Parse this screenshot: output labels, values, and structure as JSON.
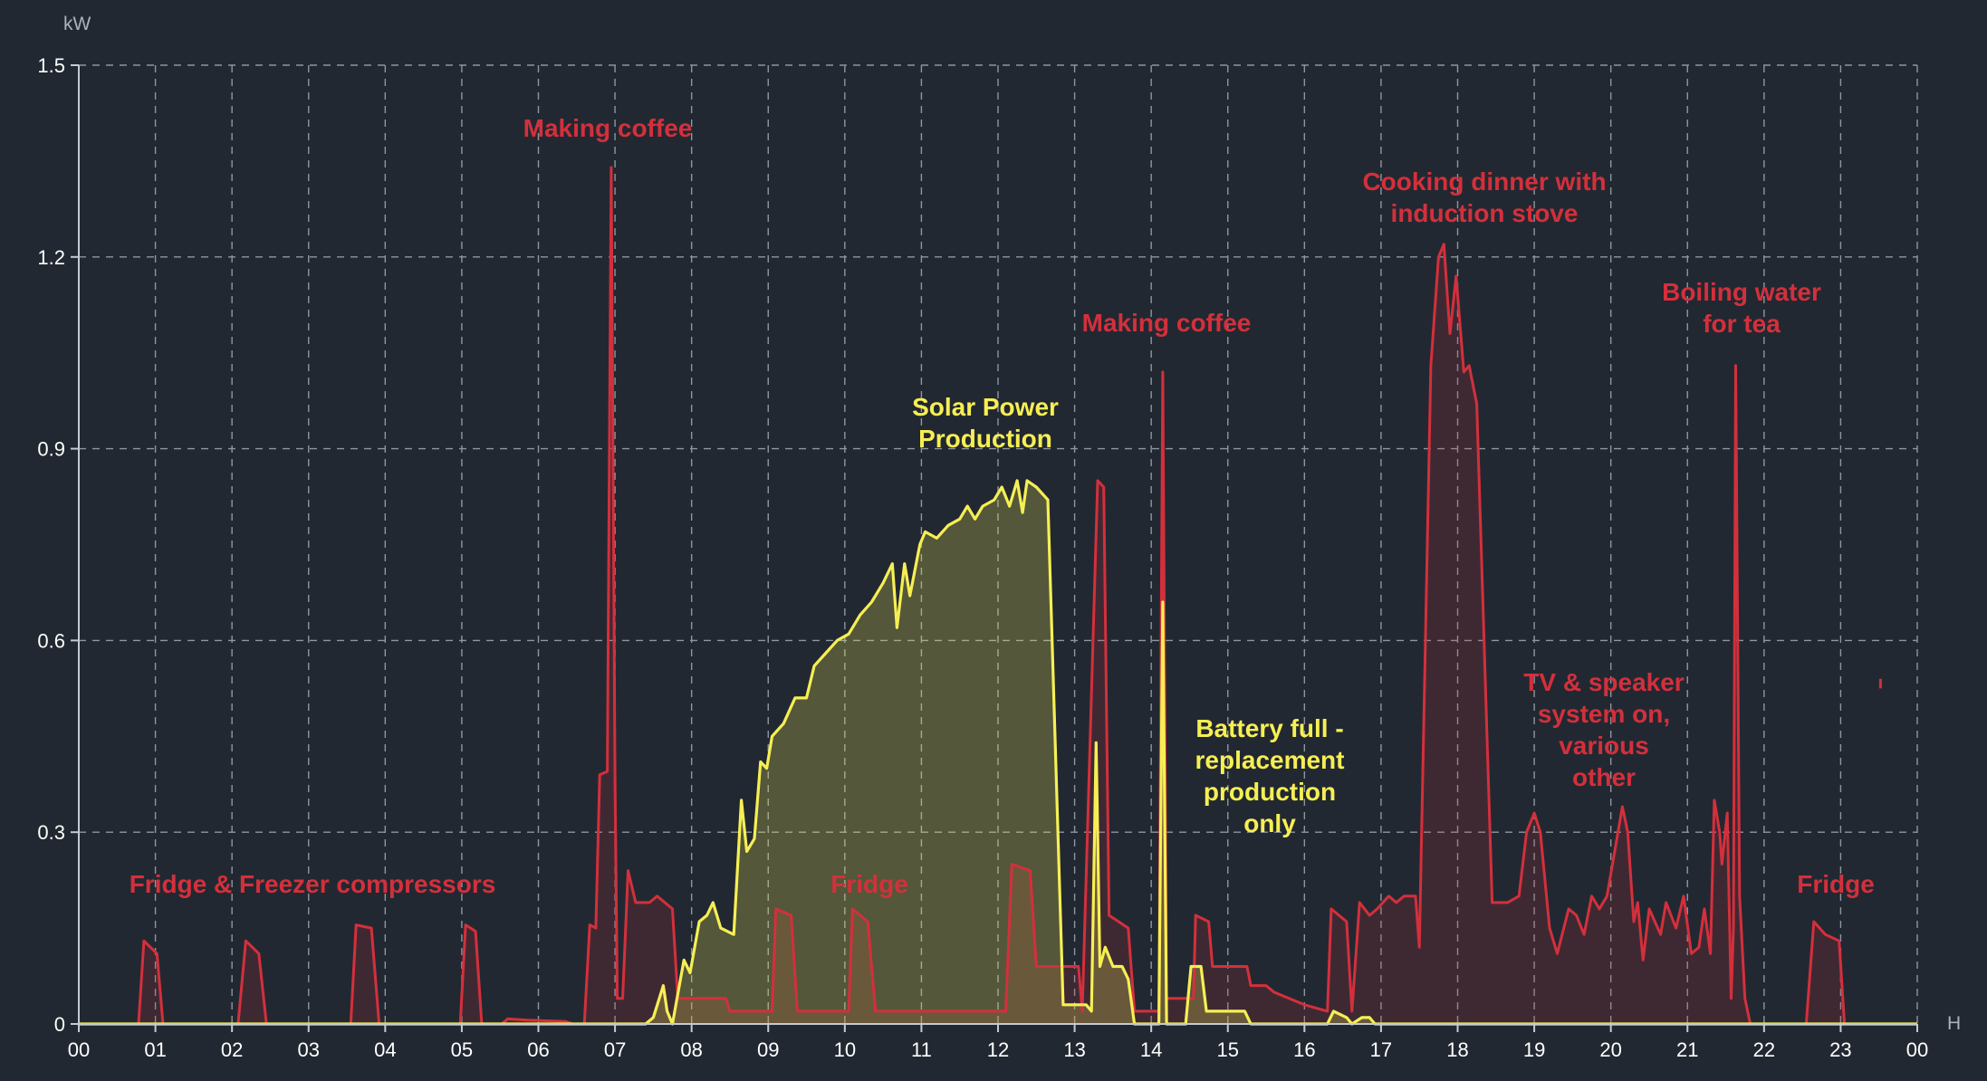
{
  "chart_data": {
    "type": "area",
    "xlabel": "H",
    "ylabel": "kW",
    "xlim": [
      0,
      24
    ],
    "ylim": [
      0,
      1.5
    ],
    "grid": true,
    "x_tick_labels": [
      "00",
      "01",
      "02",
      "03",
      "04",
      "05",
      "06",
      "07",
      "08",
      "09",
      "10",
      "11",
      "12",
      "13",
      "14",
      "15",
      "16",
      "17",
      "18",
      "19",
      "20",
      "21",
      "22",
      "23",
      "00"
    ],
    "y_ticks": [
      0,
      0.3,
      0.6,
      0.9,
      1.2,
      1.5
    ],
    "y_tick_labels": [
      "0",
      "0.3",
      "0.6",
      "0.9",
      "1.2",
      "1.5"
    ],
    "colors": {
      "consumption": "#d3303c",
      "solar": "#f6ef54"
    },
    "series": [
      {
        "key": "consumption",
        "points": [
          [
            0,
            0
          ],
          [
            0.78,
            0
          ],
          [
            0.85,
            0.13
          ],
          [
            1.02,
            0.11
          ],
          [
            1.1,
            0
          ],
          [
            2.08,
            0
          ],
          [
            2.18,
            0.13
          ],
          [
            2.35,
            0.11
          ],
          [
            2.45,
            0
          ],
          [
            3.55,
            0
          ],
          [
            3.62,
            0.155
          ],
          [
            3.82,
            0.15
          ],
          [
            3.92,
            0
          ],
          [
            4.98,
            0
          ],
          [
            5.05,
            0.155
          ],
          [
            5.18,
            0.145
          ],
          [
            5.26,
            0
          ],
          [
            5.52,
            0
          ],
          [
            5.6,
            0.008
          ],
          [
            5.85,
            0.006
          ],
          [
            6.35,
            0.004
          ],
          [
            6.45,
            0
          ],
          [
            6.6,
            0
          ],
          [
            6.67,
            0.155
          ],
          [
            6.75,
            0.15
          ],
          [
            6.8,
            0.39
          ],
          [
            6.9,
            0.395
          ],
          [
            6.95,
            1.34
          ],
          [
            7.0,
            0.38
          ],
          [
            7.03,
            0.04
          ],
          [
            7.1,
            0.04
          ],
          [
            7.17,
            0.24
          ],
          [
            7.27,
            0.19
          ],
          [
            7.45,
            0.19
          ],
          [
            7.55,
            0.2
          ],
          [
            7.75,
            0.18
          ],
          [
            7.82,
            0.04
          ],
          [
            8.1,
            0.04
          ],
          [
            8.45,
            0.04
          ],
          [
            8.5,
            0.02
          ],
          [
            9.05,
            0.02
          ],
          [
            9.1,
            0.18
          ],
          [
            9.3,
            0.17
          ],
          [
            9.38,
            0.02
          ],
          [
            9.9,
            0.02
          ],
          [
            10.05,
            0.02
          ],
          [
            10.1,
            0.18
          ],
          [
            10.3,
            0.16
          ],
          [
            10.4,
            0.02
          ],
          [
            11.35,
            0.02
          ],
          [
            11.8,
            0.02
          ],
          [
            12.1,
            0.02
          ],
          [
            12.18,
            0.25
          ],
          [
            12.42,
            0.24
          ],
          [
            12.5,
            0.09
          ],
          [
            12.6,
            0.09
          ],
          [
            13.05,
            0.09
          ],
          [
            13.1,
            0.02
          ],
          [
            13.3,
            0.85
          ],
          [
            13.38,
            0.84
          ],
          [
            13.45,
            0.17
          ],
          [
            13.7,
            0.15
          ],
          [
            13.78,
            0.02
          ],
          [
            14.1,
            0.02
          ],
          [
            14.15,
            1.02
          ],
          [
            14.2,
            0.04
          ],
          [
            14.55,
            0.04
          ],
          [
            14.58,
            0.17
          ],
          [
            14.75,
            0.16
          ],
          [
            14.8,
            0.09
          ],
          [
            15.25,
            0.09
          ],
          [
            15.3,
            0.06
          ],
          [
            15.5,
            0.06
          ],
          [
            15.6,
            0.05
          ],
          [
            15.8,
            0.04
          ],
          [
            16.0,
            0.03
          ],
          [
            16.3,
            0.02
          ],
          [
            16.35,
            0.18
          ],
          [
            16.55,
            0.16
          ],
          [
            16.62,
            0.02
          ],
          [
            16.72,
            0.19
          ],
          [
            16.85,
            0.17
          ],
          [
            16.95,
            0.18
          ],
          [
            17.1,
            0.2
          ],
          [
            17.2,
            0.19
          ],
          [
            17.3,
            0.2
          ],
          [
            17.45,
            0.2
          ],
          [
            17.5,
            0.12
          ],
          [
            17.65,
            1.03
          ],
          [
            17.75,
            1.2
          ],
          [
            17.82,
            1.22
          ],
          [
            17.9,
            1.08
          ],
          [
            17.98,
            1.17
          ],
          [
            18.08,
            1.02
          ],
          [
            18.15,
            1.03
          ],
          [
            18.25,
            0.97
          ],
          [
            18.45,
            0.19
          ],
          [
            18.65,
            0.19
          ],
          [
            18.8,
            0.2
          ],
          [
            18.9,
            0.3
          ],
          [
            19.0,
            0.33
          ],
          [
            19.08,
            0.3
          ],
          [
            19.2,
            0.15
          ],
          [
            19.3,
            0.11
          ],
          [
            19.45,
            0.18
          ],
          [
            19.55,
            0.17
          ],
          [
            19.65,
            0.14
          ],
          [
            19.75,
            0.2
          ],
          [
            19.85,
            0.18
          ],
          [
            19.95,
            0.2
          ],
          [
            20.05,
            0.27
          ],
          [
            20.15,
            0.34
          ],
          [
            20.22,
            0.3
          ],
          [
            20.3,
            0.16
          ],
          [
            20.35,
            0.19
          ],
          [
            20.42,
            0.1
          ],
          [
            20.5,
            0.18
          ],
          [
            20.65,
            0.14
          ],
          [
            20.72,
            0.19
          ],
          [
            20.85,
            0.15
          ],
          [
            20.95,
            0.2
          ],
          [
            21.05,
            0.11
          ],
          [
            21.15,
            0.12
          ],
          [
            21.22,
            0.18
          ],
          [
            21.3,
            0.11
          ],
          [
            21.35,
            0.35
          ],
          [
            21.42,
            0.3
          ],
          [
            21.45,
            0.25
          ],
          [
            21.52,
            0.33
          ],
          [
            21.57,
            0.04
          ],
          [
            21.6,
            0.15
          ],
          [
            21.63,
            1.03
          ],
          [
            21.68,
            0.2
          ],
          [
            21.75,
            0.04
          ],
          [
            21.82,
            0
          ],
          [
            22.55,
            0
          ],
          [
            22.65,
            0.16
          ],
          [
            22.8,
            0.14
          ],
          [
            22.98,
            0.13
          ],
          [
            23.05,
            0
          ],
          [
            24.0,
            0
          ]
        ]
      },
      {
        "key": "solar",
        "points": [
          [
            0,
            0
          ],
          [
            7.4,
            0
          ],
          [
            7.5,
            0.01
          ],
          [
            7.63,
            0.06
          ],
          [
            7.68,
            0.02
          ],
          [
            7.75,
            0
          ],
          [
            7.9,
            0.1
          ],
          [
            7.98,
            0.08
          ],
          [
            8.1,
            0.16
          ],
          [
            8.2,
            0.17
          ],
          [
            8.28,
            0.19
          ],
          [
            8.38,
            0.15
          ],
          [
            8.55,
            0.14
          ],
          [
            8.65,
            0.35
          ],
          [
            8.72,
            0.27
          ],
          [
            8.82,
            0.29
          ],
          [
            8.9,
            0.41
          ],
          [
            8.98,
            0.4
          ],
          [
            9.05,
            0.45
          ],
          [
            9.2,
            0.47
          ],
          [
            9.35,
            0.51
          ],
          [
            9.5,
            0.51
          ],
          [
            9.6,
            0.56
          ],
          [
            9.75,
            0.58
          ],
          [
            9.9,
            0.6
          ],
          [
            10.05,
            0.61
          ],
          [
            10.2,
            0.64
          ],
          [
            10.35,
            0.66
          ],
          [
            10.5,
            0.69
          ],
          [
            10.62,
            0.72
          ],
          [
            10.68,
            0.62
          ],
          [
            10.78,
            0.72
          ],
          [
            10.85,
            0.67
          ],
          [
            10.98,
            0.75
          ],
          [
            11.05,
            0.77
          ],
          [
            11.2,
            0.76
          ],
          [
            11.35,
            0.78
          ],
          [
            11.5,
            0.79
          ],
          [
            11.6,
            0.81
          ],
          [
            11.7,
            0.79
          ],
          [
            11.8,
            0.81
          ],
          [
            11.95,
            0.82
          ],
          [
            12.05,
            0.84
          ],
          [
            12.15,
            0.81
          ],
          [
            12.25,
            0.85
          ],
          [
            12.32,
            0.8
          ],
          [
            12.38,
            0.85
          ],
          [
            12.5,
            0.84
          ],
          [
            12.65,
            0.82
          ],
          [
            12.85,
            0.03
          ],
          [
            13.15,
            0.03
          ],
          [
            13.22,
            0.02
          ],
          [
            13.28,
            0.44
          ],
          [
            13.33,
            0.09
          ],
          [
            13.4,
            0.12
          ],
          [
            13.5,
            0.09
          ],
          [
            13.62,
            0.09
          ],
          [
            13.7,
            0.07
          ],
          [
            13.78,
            0
          ],
          [
            14.1,
            0
          ],
          [
            14.15,
            0.66
          ],
          [
            14.2,
            0
          ],
          [
            14.45,
            0
          ],
          [
            14.52,
            0.09
          ],
          [
            14.65,
            0.09
          ],
          [
            14.72,
            0.02
          ],
          [
            15.22,
            0.02
          ],
          [
            15.3,
            0
          ],
          [
            16.3,
            0
          ],
          [
            16.38,
            0.02
          ],
          [
            16.55,
            0.01
          ],
          [
            16.62,
            0
          ],
          [
            16.75,
            0.01
          ],
          [
            16.85,
            0.01
          ],
          [
            16.92,
            0
          ],
          [
            24.0,
            0
          ]
        ]
      }
    ],
    "annotations": [
      {
        "text": "Making coffee",
        "color": "red"
      },
      {
        "text": "Cooking dinner with",
        "color": "red"
      },
      {
        "text": "induction stove",
        "color": "red"
      },
      {
        "text": "Making coffee",
        "color": "red"
      },
      {
        "text": "Boiling water",
        "color": "red"
      },
      {
        "text": "for tea",
        "color": "red"
      },
      {
        "text": "Solar Power",
        "color": "yellow"
      },
      {
        "text": "Production",
        "color": "yellow"
      },
      {
        "text": "Battery full -",
        "color": "yellow"
      },
      {
        "text": "replacement",
        "color": "yellow"
      },
      {
        "text": "production",
        "color": "yellow"
      },
      {
        "text": "only",
        "color": "yellow"
      },
      {
        "text": "TV & speaker",
        "color": "red"
      },
      {
        "text": "system on,",
        "color": "red"
      },
      {
        "text": "various",
        "color": "red"
      },
      {
        "text": "other",
        "color": "red"
      },
      {
        "text": "Fridge & Freezer compressors",
        "color": "red"
      },
      {
        "text": "Fridge",
        "color": "red"
      },
      {
        "text": "Fridge",
        "color": "red"
      }
    ]
  }
}
